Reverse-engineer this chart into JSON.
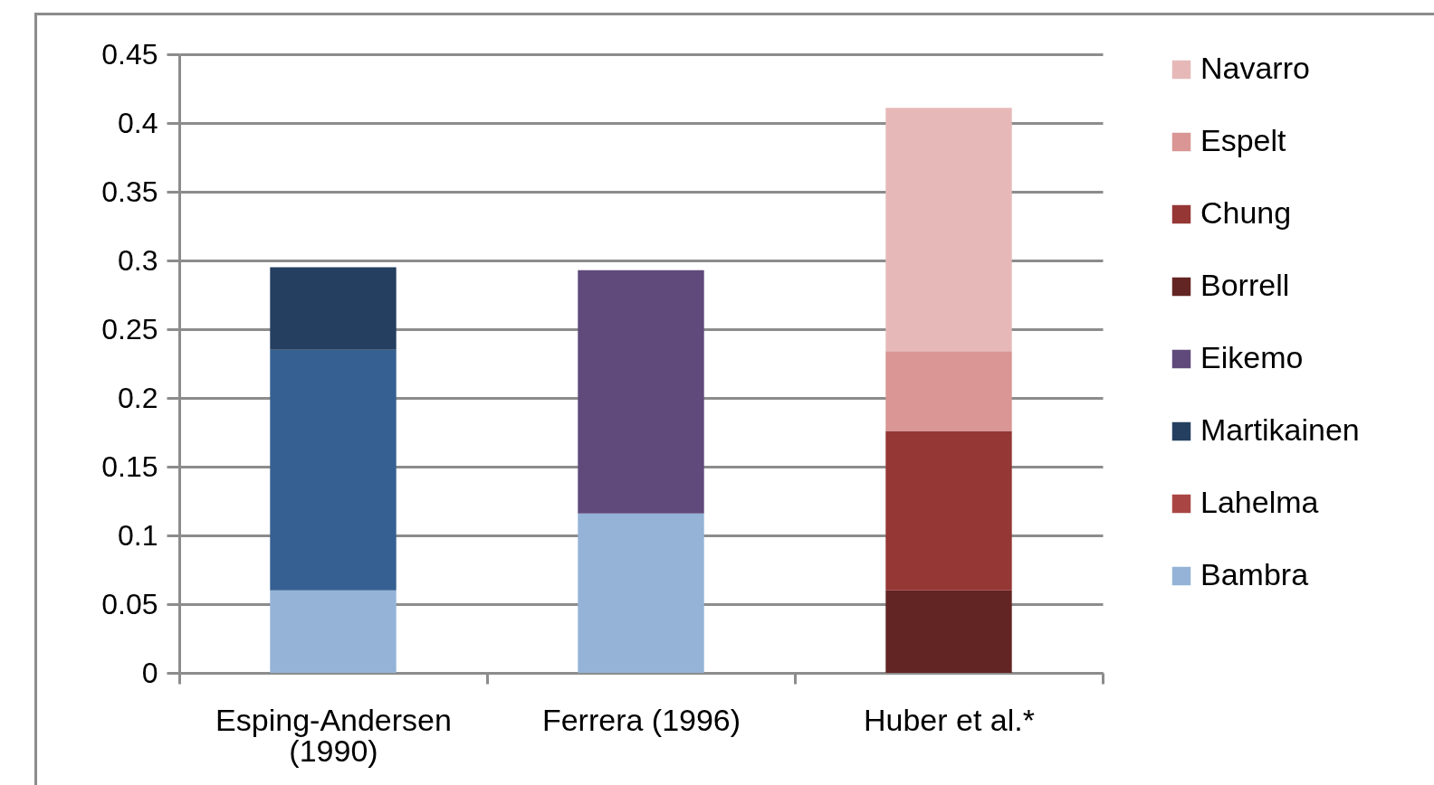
{
  "chart_data": {
    "type": "bar",
    "stacked": true,
    "categories": [
      "Esping-Andersen (1990)",
      "Ferrera (1996)",
      "Huber et al.*"
    ],
    "series": [
      {
        "name": "Bambra",
        "color": "#95b3d7",
        "values": [
          0.06,
          0.116,
          null
        ]
      },
      {
        "color": "#366092",
        "values": [
          0.175,
          null,
          null
        ]
      },
      {
        "name": "Lahelma",
        "color": "#a94643",
        "values": [
          null,
          null,
          null
        ]
      },
      {
        "name": "Martikainen",
        "color": "#243f60",
        "values": [
          0.06,
          null,
          null
        ]
      },
      {
        "name": "Eikemo",
        "color": "#604a7b",
        "values": [
          null,
          0.177,
          null
        ]
      },
      {
        "name": "Borrell",
        "color": "#632523",
        "values": [
          null,
          null,
          0.06
        ]
      },
      {
        "name": "Chung",
        "color": "#953735",
        "values": [
          null,
          null,
          0.116
        ]
      },
      {
        "name": "Espelt",
        "color": "#d99694",
        "values": [
          null,
          null,
          0.058
        ]
      },
      {
        "name": "Navarro",
        "color": "#e6b9b8",
        "values": [
          null,
          null,
          0.177
        ]
      }
    ],
    "ylim": [
      0,
      0.45
    ],
    "yticks": [
      0,
      0.05,
      0.1,
      0.15,
      0.2,
      0.25,
      0.3,
      0.35,
      0.4,
      0.45
    ],
    "grid": "y",
    "legend": "right"
  }
}
